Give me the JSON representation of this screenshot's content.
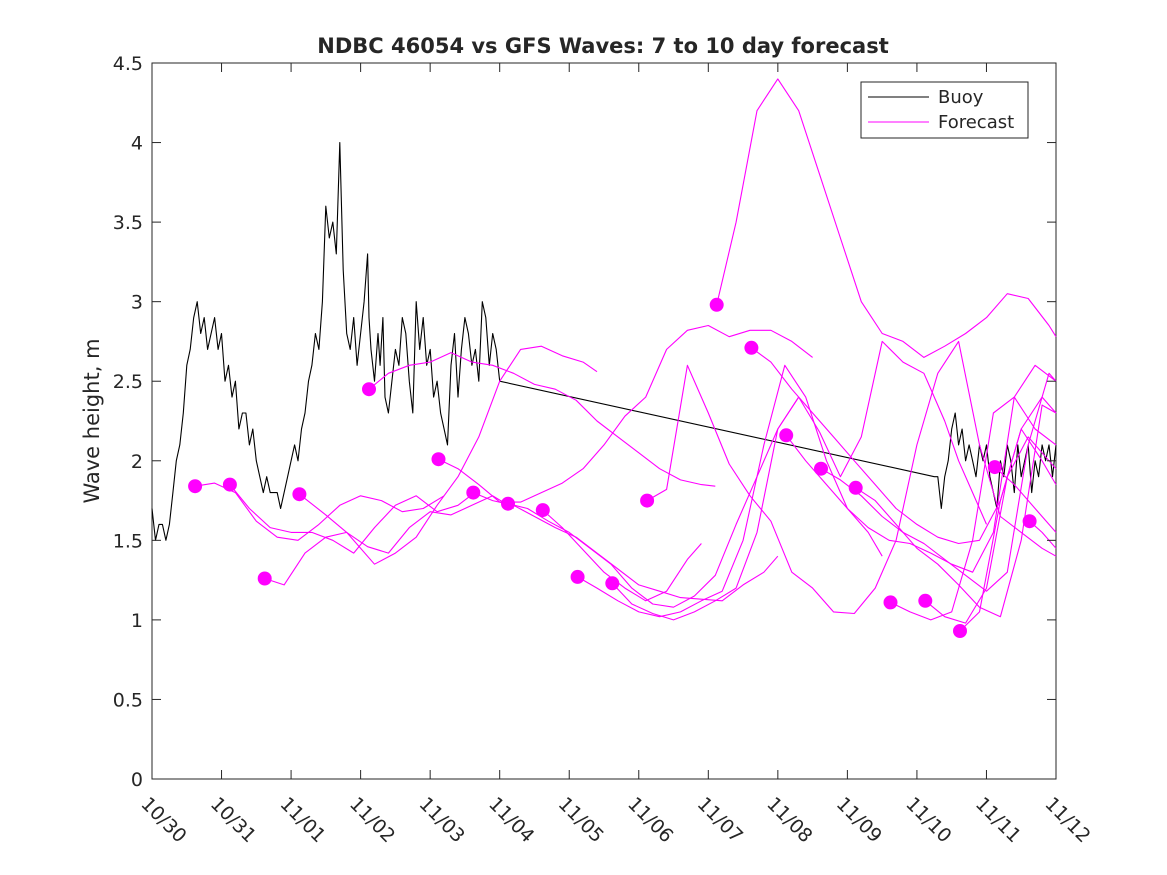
{
  "chart_data": {
    "type": "line",
    "title": "NDBC 46054 vs GFS Waves: 7 to 10 day forecast",
    "xlabel": "",
    "ylabel": "Wave height, m",
    "x_unit": "days since 10/30",
    "xlim": [
      0,
      13
    ],
    "ylim": [
      0,
      4.5
    ],
    "x_tick_labels": [
      "10/30",
      "10/31",
      "11/01",
      "11/02",
      "11/03",
      "11/04",
      "11/05",
      "11/06",
      "11/07",
      "11/08",
      "11/09",
      "11/10",
      "11/11",
      "11/12"
    ],
    "y_tick_labels": [
      "0",
      "0.5",
      "1",
      "1.5",
      "2",
      "2.5",
      "3",
      "3.5",
      "4",
      "4.5"
    ],
    "legend": {
      "placement": "top-right",
      "entries": [
        {
          "label": "Buoy",
          "color": "#000000"
        },
        {
          "label": "Forecast",
          "color": "#ff00ff"
        }
      ]
    },
    "buoy": {
      "name": "Buoy",
      "color": "#000000",
      "x": [
        0.0,
        0.05,
        0.1,
        0.15,
        0.2,
        0.25,
        0.3,
        0.35,
        0.4,
        0.45,
        0.5,
        0.55,
        0.6,
        0.65,
        0.7,
        0.75,
        0.8,
        0.85,
        0.9,
        0.95,
        1.0,
        1.05,
        1.1,
        1.15,
        1.2,
        1.25,
        1.3,
        1.35,
        1.4,
        1.45,
        1.5,
        1.55,
        1.6,
        1.65,
        1.7,
        1.75,
        1.8,
        1.85,
        1.9,
        1.95,
        2.0,
        2.05,
        2.1,
        2.15,
        2.2,
        2.25,
        2.3,
        2.35,
        2.4,
        2.45,
        2.5,
        2.55,
        2.6,
        2.65,
        2.7,
        2.75,
        2.8,
        2.85,
        2.9,
        2.95,
        3.0,
        3.05,
        3.1,
        3.12,
        3.15,
        3.2,
        3.25,
        3.28,
        3.32,
        3.35,
        3.4,
        3.45,
        3.5,
        3.55,
        3.6,
        3.65,
        3.7,
        3.75,
        3.8,
        3.85,
        3.9,
        3.95,
        4.0,
        4.05,
        4.1,
        4.15,
        4.2,
        4.25,
        4.3,
        4.35,
        4.4,
        4.45,
        4.5,
        4.55,
        4.6,
        4.65,
        4.7,
        4.75,
        4.8,
        4.85,
        4.9,
        4.95,
        5.0,
        11.25,
        11.3,
        11.35,
        11.4,
        11.45,
        11.5,
        11.55,
        11.6,
        11.65,
        11.7,
        11.75,
        11.8,
        11.85,
        11.9,
        11.95,
        12.0,
        12.05,
        12.1,
        12.15,
        12.2,
        12.25,
        12.3,
        12.35,
        12.4,
        12.45,
        12.5,
        12.55,
        12.6,
        12.65,
        12.7,
        12.75,
        12.8,
        12.85,
        12.9,
        12.95,
        13.0
      ],
      "values": [
        1.7,
        1.5,
        1.6,
        1.6,
        1.5,
        1.6,
        1.8,
        2.0,
        2.1,
        2.3,
        2.6,
        2.7,
        2.9,
        3.0,
        2.8,
        2.9,
        2.7,
        2.8,
        2.9,
        2.7,
        2.8,
        2.5,
        2.6,
        2.4,
        2.5,
        2.2,
        2.3,
        2.3,
        2.1,
        2.2,
        2.0,
        1.9,
        1.8,
        1.9,
        1.8,
        1.8,
        1.8,
        1.7,
        1.8,
        1.9,
        2.0,
        2.1,
        2.0,
        2.2,
        2.3,
        2.5,
        2.6,
        2.8,
        2.7,
        3.0,
        3.6,
        3.4,
        3.5,
        3.3,
        4.0,
        3.2,
        2.8,
        2.7,
        2.9,
        2.6,
        2.8,
        3.0,
        3.3,
        2.9,
        2.7,
        2.5,
        2.8,
        2.6,
        2.9,
        2.4,
        2.3,
        2.5,
        2.7,
        2.6,
        2.9,
        2.8,
        2.5,
        2.3,
        3.0,
        2.7,
        2.9,
        2.6,
        2.7,
        2.4,
        2.5,
        2.3,
        2.2,
        2.1,
        2.6,
        2.8,
        2.4,
        2.7,
        2.9,
        2.8,
        2.6,
        2.7,
        2.5,
        3.0,
        2.9,
        2.6,
        2.8,
        2.7,
        2.5,
        1.9,
        1.9,
        1.7,
        1.9,
        2.0,
        2.2,
        2.3,
        2.1,
        2.2,
        2.0,
        2.1,
        2.0,
        1.9,
        2.1,
        2.0,
        2.1,
        1.9,
        1.8,
        1.7,
        2.0,
        1.9,
        2.1,
        2.0,
        1.8,
        2.1,
        1.9,
        2.0,
        2.1,
        1.8,
        2.0,
        1.9,
        2.1,
        2.0,
        2.1,
        1.9,
        2.1
      ]
    },
    "forecasts": [
      {
        "x": [
          0.62,
          0.9,
          1.2,
          1.5,
          1.8,
          2.1,
          2.4,
          2.7,
          3.0,
          3.3,
          3.6,
          3.9,
          4.2
        ],
        "values": [
          1.84,
          1.86,
          1.8,
          1.62,
          1.52,
          1.5,
          1.6,
          1.72,
          1.78,
          1.75,
          1.68,
          1.7,
          1.78
        ]
      },
      {
        "x": [
          1.12,
          1.4,
          1.7,
          2.0,
          2.3,
          2.6,
          2.9,
          3.2,
          3.5,
          3.8,
          4.1,
          4.4,
          4.7
        ],
        "values": [
          1.85,
          1.7,
          1.58,
          1.55,
          1.55,
          1.5,
          1.42,
          1.58,
          1.72,
          1.78,
          1.68,
          1.72,
          1.82
        ]
      },
      {
        "x": [
          1.62,
          1.9,
          2.2,
          2.5,
          2.8,
          3.1,
          3.4,
          3.7,
          4.0,
          4.3,
          4.6,
          4.9,
          5.2
        ],
        "values": [
          1.26,
          1.22,
          1.42,
          1.52,
          1.55,
          1.46,
          1.42,
          1.58,
          1.68,
          1.66,
          1.72,
          1.78,
          1.7
        ]
      },
      {
        "x": [
          2.12,
          2.5,
          2.8,
          3.2,
          3.5,
          3.8,
          4.1,
          4.4,
          4.7,
          5.0,
          5.3,
          5.6,
          5.9,
          6.2,
          6.4
        ],
        "values": [
          1.79,
          1.66,
          1.55,
          1.35,
          1.42,
          1.52,
          1.72,
          1.9,
          2.15,
          2.5,
          2.7,
          2.72,
          2.66,
          2.62,
          2.56
        ]
      },
      {
        "x": [
          3.12,
          3.4,
          3.7,
          4.0,
          4.3,
          4.6,
          4.9,
          5.2,
          5.5,
          5.8,
          6.1,
          6.4,
          6.7,
          7.0,
          7.3,
          7.6,
          7.9,
          8.1
        ],
        "values": [
          2.45,
          2.55,
          2.6,
          2.62,
          2.68,
          2.62,
          2.6,
          2.55,
          2.48,
          2.45,
          2.38,
          2.25,
          2.15,
          2.05,
          1.95,
          1.88,
          1.85,
          1.84
        ]
      },
      {
        "x": [
          4.12,
          4.4,
          4.7,
          5.0,
          5.3,
          5.6,
          5.9,
          6.2,
          6.5,
          6.8,
          7.1,
          7.4,
          7.7,
          8.0,
          8.3,
          8.6,
          8.9,
          9.2,
          9.5
        ],
        "values": [
          2.01,
          1.95,
          1.85,
          1.74,
          1.74,
          1.8,
          1.86,
          1.95,
          2.1,
          2.28,
          2.4,
          2.7,
          2.82,
          2.85,
          2.78,
          2.82,
          2.82,
          2.75,
          2.65
        ]
      },
      {
        "x": [
          4.62,
          4.9,
          5.2,
          5.5,
          5.8,
          6.1,
          6.4,
          6.7,
          7.0,
          7.3,
          7.6,
          7.9,
          8.2,
          8.5,
          8.8,
          9.0
        ],
        "values": [
          1.8,
          1.75,
          1.72,
          1.65,
          1.58,
          1.52,
          1.42,
          1.32,
          1.22,
          1.18,
          1.14,
          1.13,
          1.12,
          1.22,
          1.3,
          1.4
        ]
      },
      {
        "x": [
          5.12,
          5.4,
          5.7,
          6.0,
          6.3,
          6.6,
          6.9,
          7.2,
          7.5,
          7.8,
          8.1,
          8.4,
          8.7,
          9.0,
          9.3
        ],
        "values": [
          1.73,
          1.7,
          1.62,
          1.55,
          1.45,
          1.35,
          1.2,
          1.1,
          1.08,
          1.15,
          1.28,
          1.6,
          1.9,
          2.2,
          2.4
        ]
      },
      {
        "x": [
          5.62,
          5.9,
          6.2,
          6.5,
          6.8,
          7.1,
          7.4,
          7.7,
          7.9
        ],
        "values": [
          1.69,
          1.58,
          1.44,
          1.3,
          1.2,
          1.12,
          1.18,
          1.38,
          1.48
        ]
      },
      {
        "x": [
          6.12,
          6.4,
          6.7,
          7.0,
          7.3,
          7.6,
          7.9,
          8.2,
          8.5,
          8.8,
          9.1,
          9.4,
          9.7,
          10.0,
          10.3,
          10.5
        ],
        "values": [
          1.27,
          1.2,
          1.12,
          1.05,
          1.02,
          1.05,
          1.12,
          1.18,
          1.5,
          2.1,
          2.6,
          2.4,
          2.0,
          1.7,
          1.55,
          1.4
        ]
      },
      {
        "x": [
          6.62,
          6.9,
          7.2,
          7.5,
          7.8,
          8.1,
          8.4,
          8.7,
          9.0,
          9.3,
          9.6,
          9.9,
          10.2,
          10.5,
          10.8,
          11.1,
          11.4,
          11.6,
          11.8,
          12.0
        ],
        "values": [
          1.23,
          1.1,
          1.04,
          1.0,
          1.05,
          1.12,
          1.2,
          1.55,
          2.2,
          2.4,
          2.18,
          1.9,
          2.15,
          2.75,
          2.62,
          2.55,
          2.25,
          2.0,
          1.8,
          1.6
        ]
      },
      {
        "x": [
          7.12,
          7.4,
          7.7,
          8.0,
          8.3,
          8.6,
          8.9,
          9.2,
          9.5,
          9.8,
          10.1,
          10.4,
          10.7,
          11.0,
          11.3,
          11.6,
          11.9,
          12.2,
          12.5,
          12.8,
          13.0
        ],
        "values": [
          1.75,
          1.82,
          2.6,
          2.3,
          1.98,
          1.78,
          1.62,
          1.3,
          1.2,
          1.05,
          1.04,
          1.2,
          1.5,
          2.1,
          2.55,
          2.75,
          2.1,
          1.65,
          1.55,
          1.45,
          1.4
        ]
      },
      {
        "x": [
          8.12,
          8.4,
          8.7,
          9.0,
          9.3,
          9.6,
          9.9,
          10.2,
          10.5,
          10.8,
          11.1,
          11.4,
          11.7,
          12.0,
          12.3,
          12.6,
          12.9,
          13.0
        ],
        "values": [
          2.98,
          3.5,
          4.2,
          4.4,
          4.2,
          3.8,
          3.4,
          3.0,
          2.8,
          2.75,
          2.65,
          2.72,
          2.8,
          2.9,
          3.05,
          3.02,
          2.85,
          2.78
        ]
      },
      {
        "x": [
          8.62,
          8.9,
          9.2,
          9.5,
          9.8,
          10.1,
          10.4,
          10.7,
          11.0,
          11.3,
          11.6,
          11.9,
          12.2,
          12.5,
          12.8,
          13.0
        ],
        "values": [
          2.71,
          2.62,
          2.45,
          2.3,
          2.15,
          2.0,
          1.85,
          1.7,
          1.6,
          1.52,
          1.48,
          1.5,
          1.75,
          2.2,
          2.4,
          2.3
        ]
      },
      {
        "x": [
          9.12,
          9.4,
          9.7,
          10.0,
          10.3,
          10.6,
          10.9,
          11.2,
          11.5,
          11.8,
          12.1,
          12.4,
          12.7,
          13.0
        ],
        "values": [
          2.16,
          2.0,
          1.85,
          1.7,
          1.58,
          1.5,
          1.48,
          1.42,
          1.35,
          1.3,
          1.55,
          2.4,
          2.6,
          2.5
        ]
      },
      {
        "x": [
          9.62,
          9.9,
          10.2,
          10.5,
          10.8,
          11.1,
          11.4,
          11.7,
          12.0,
          12.3,
          12.6,
          12.9,
          13.0
        ],
        "values": [
          1.95,
          1.88,
          1.78,
          1.65,
          1.55,
          1.48,
          1.38,
          1.28,
          1.18,
          1.3,
          2.1,
          2.55,
          2.5
        ]
      },
      {
        "x": [
          10.12,
          10.4,
          10.7,
          11.0,
          11.3,
          11.6,
          11.9,
          12.2,
          12.5,
          12.8,
          13.0
        ],
        "values": [
          1.83,
          1.75,
          1.6,
          1.45,
          1.35,
          1.22,
          1.08,
          1.02,
          1.5,
          2.35,
          2.3
        ]
      },
      {
        "x": [
          10.62,
          10.9,
          11.2,
          11.5,
          11.8,
          12.1,
          12.4,
          12.7,
          13.0
        ],
        "values": [
          1.11,
          1.05,
          1.0,
          1.05,
          1.5,
          2.3,
          2.4,
          2.2,
          2.1
        ]
      },
      {
        "x": [
          11.12,
          11.4,
          11.7,
          12.0,
          12.3,
          12.6,
          12.9,
          13.0
        ],
        "values": [
          1.12,
          1.02,
          0.98,
          1.2,
          1.9,
          2.15,
          2.0,
          1.95
        ]
      },
      {
        "x": [
          11.62,
          11.9,
          12.2,
          12.5,
          12.8,
          13.0
        ],
        "values": [
          0.93,
          1.05,
          1.75,
          2.2,
          2.0,
          1.85
        ]
      },
      {
        "x": [
          12.12,
          12.4,
          12.7,
          13.0
        ],
        "values": [
          1.96,
          1.85,
          1.7,
          1.55
        ]
      },
      {
        "x": [
          12.62,
          12.8,
          13.0
        ],
        "values": [
          1.62,
          1.55,
          1.45
        ]
      }
    ],
    "forecast_start_markers": {
      "color": "#ff00ff",
      "x": [
        0.62,
        1.12,
        1.62,
        2.12,
        3.12,
        4.12,
        4.62,
        5.12,
        5.62,
        6.12,
        6.62,
        7.12,
        8.12,
        8.62,
        9.12,
        9.62,
        10.12,
        10.62,
        11.12,
        11.62,
        12.12,
        12.62
      ],
      "values": [
        1.84,
        1.85,
        1.26,
        1.79,
        2.45,
        2.01,
        1.8,
        1.73,
        1.69,
        1.27,
        1.23,
        1.75,
        2.98,
        2.71,
        2.16,
        1.95,
        1.83,
        1.11,
        1.12,
        0.93,
        1.96,
        1.62
      ]
    }
  }
}
